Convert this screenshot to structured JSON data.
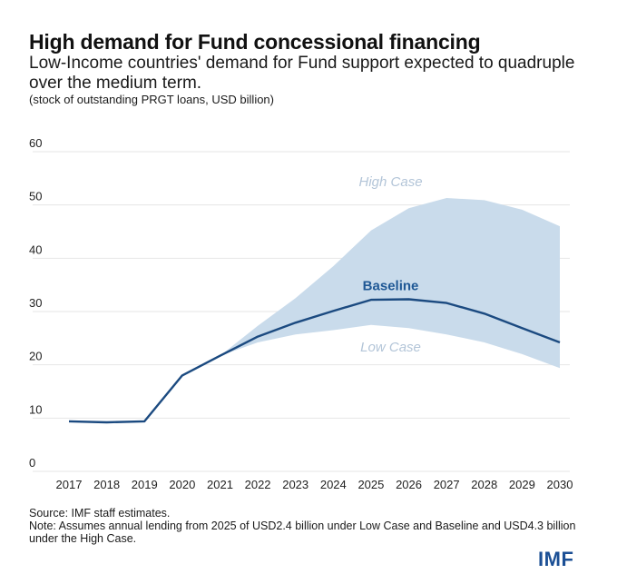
{
  "header": {
    "title": "High demand for Fund concessional financing",
    "subtitle": "Low-Income countries' demand for Fund support expected to quadruple over the medium term.",
    "units": "(stock of outstanding PRGT loans, USD billion)"
  },
  "footer": {
    "source": "Source: IMF staff estimates.",
    "note": "Note: Assumes annual lending from 2025 of USD2.4 billion under Low Case and Baseline and USD4.3 billion under the High Case.",
    "logo": "IMF"
  },
  "colors": {
    "baseline": "#1b4a80",
    "band": "#c9dbeb",
    "case_label": "#b3c5d8",
    "baseline_label": "#1f5895",
    "logo": "#1b4f95"
  },
  "chart_data": {
    "type": "area",
    "title": "High demand for Fund concessional financing",
    "xlabel": "",
    "ylabel": "",
    "ylim": [
      0,
      60
    ],
    "yticks": [
      0,
      10,
      20,
      30,
      40,
      50,
      60
    ],
    "ytick_labels": [
      "0",
      "10",
      "20",
      "30",
      "40",
      "50",
      "60"
    ],
    "grid": true,
    "x": [
      "2017",
      "2018",
      "2019",
      "2020",
      "2021",
      "2022",
      "2023",
      "2024",
      "2025",
      "2026",
      "2027",
      "2028",
      "2029",
      "2030"
    ],
    "series": [
      {
        "name": "Baseline",
        "kind": "line",
        "values": [
          9.4,
          9.2,
          9.4,
          18.0,
          21.7,
          25.3,
          27.9,
          30.1,
          32.2,
          32.3,
          31.6,
          29.6,
          26.9,
          24.2
        ]
      },
      {
        "name": "High Case",
        "kind": "band-upper",
        "values": [
          null,
          null,
          null,
          null,
          21.7,
          27.3,
          32.5,
          38.5,
          45.2,
          49.4,
          51.3,
          50.9,
          49.1,
          46.0
        ]
      },
      {
        "name": "Low Case",
        "kind": "band-lower",
        "values": [
          null,
          null,
          null,
          null,
          21.7,
          24.2,
          25.7,
          26.5,
          27.5,
          26.9,
          25.7,
          24.2,
          22.0,
          19.4
        ]
      }
    ],
    "annotations": [
      {
        "text": "High Case",
        "x": "2026",
        "y": 53.5
      },
      {
        "text": "Baseline",
        "x": "2026",
        "y": 34.0
      },
      {
        "text": "Low Case",
        "x": "2026",
        "y": 22.5
      }
    ],
    "legend": "none"
  }
}
